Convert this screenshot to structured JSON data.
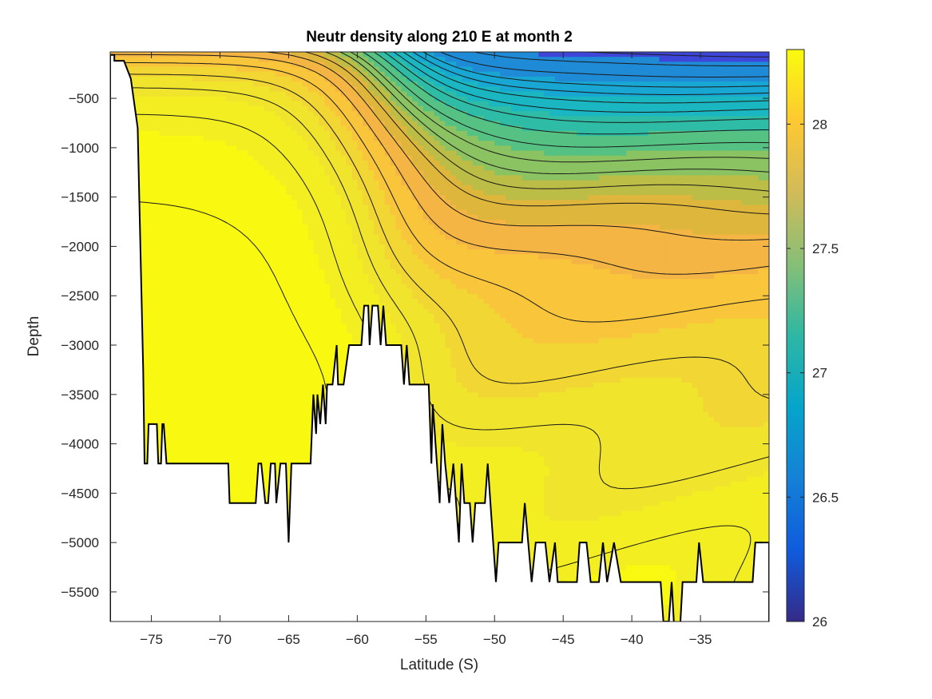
{
  "chart_data": {
    "type": "heatmap",
    "title": "Neutr density along 210 E at month 2",
    "xlabel": "Latitude (S)",
    "ylabel": "Depth",
    "xlim": [
      -78,
      -30
    ],
    "ylim": [
      -5800,
      -30
    ],
    "xticks": [
      -75,
      -70,
      -65,
      -60,
      -55,
      -50,
      -45,
      -40,
      -35
    ],
    "xtick_labels": [
      "−75",
      "−70",
      "−65",
      "−60",
      "−55",
      "−50",
      "−45",
      "−40",
      "−35"
    ],
    "yticks": [
      -500,
      -1000,
      -1500,
      -2000,
      -2500,
      -3000,
      -3500,
      -4000,
      -4500,
      -5000,
      -5500
    ],
    "ytick_labels": [
      "−500",
      "−1000",
      "−1500",
      "−2000",
      "−2500",
      "−3000",
      "−3500",
      "−4000",
      "−4500",
      "−5000",
      "−5500"
    ],
    "colormap": "parula",
    "colorbar": {
      "range": [
        26,
        28.3
      ],
      "ticks": [
        26,
        26.5,
        27,
        27.5,
        28
      ],
      "tick_labels": [
        "26",
        "26.5",
        "27",
        "27.5",
        "28"
      ],
      "colors": [
        "#352a87",
        "#0f5cdd",
        "#1481d6",
        "#06a4ca",
        "#2eb7a4",
        "#87bf77",
        "#d1bb59",
        "#fec832",
        "#f9fb0e"
      ]
    },
    "fill_levels": [
      {
        "value": 26.4,
        "color": "#3e46d9"
      },
      {
        "value": 26.8,
        "color": "#1f8ad6"
      },
      {
        "value": 27.0,
        "color": "#18a6d3"
      },
      {
        "value": 27.2,
        "color": "#1ab6c1"
      },
      {
        "value": 27.35,
        "color": "#2fbca6"
      },
      {
        "value": 27.5,
        "color": "#55c283"
      },
      {
        "value": 27.65,
        "color": "#8cc362"
      },
      {
        "value": 27.75,
        "color": "#bcbd46"
      },
      {
        "value": 27.85,
        "color": "#dfb63c"
      },
      {
        "value": 27.95,
        "color": "#f4b544"
      },
      {
        "value": 28.05,
        "color": "#f9c53b"
      },
      {
        "value": 28.12,
        "color": "#f2d634"
      },
      {
        "value": 28.18,
        "color": "#f0e52c"
      },
      {
        "value": 28.24,
        "color": "#f2ee22"
      },
      {
        "value": 28.3,
        "color": "#f9f811"
      }
    ]
  }
}
